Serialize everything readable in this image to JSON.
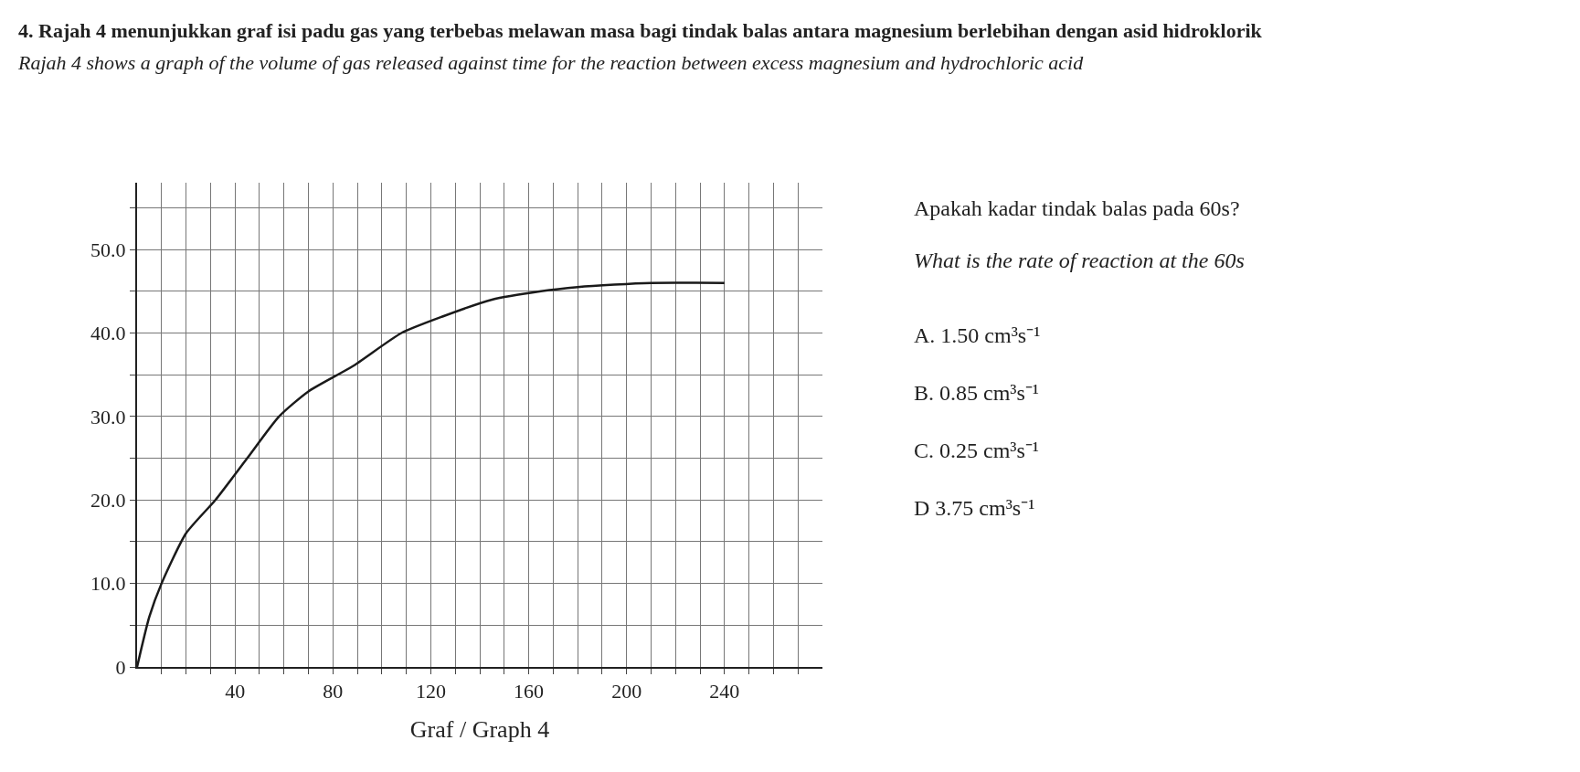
{
  "chart_data": {
    "type": "line",
    "title": "4. Rajah 4 menunjukkan graf isi padu gas yang terbebas melawan masa bagi tindak balas antara magnesium berlebihan dengan asid hidroklorik",
    "subtitle": "Rajah 4 shows a graph of the volume of gas released against time for the reaction between excess magnesium and hydrochloric acid",
    "xlabel": "Graf / Graph 4",
    "x": [
      0,
      5,
      10,
      20,
      32,
      45,
      58,
      70,
      88,
      108,
      125,
      145,
      165,
      180,
      195,
      210,
      240
    ],
    "series": [
      {
        "color": "#1a1a1a",
        "values": [
          0,
          6,
          10,
          16,
          20,
          25,
          30,
          33,
          36,
          40,
          42,
          44,
          45,
          45.5,
          45.8,
          46,
          46
        ]
      }
    ],
    "xlim": [
      0,
      280
    ],
    "ylim": [
      0,
      58
    ],
    "xticks": [
      {
        "value": 10,
        "label": null
      },
      {
        "value": 20,
        "label": null
      },
      {
        "value": 30,
        "label": null
      },
      40,
      {
        "value": 50,
        "label": null
      },
      {
        "value": 60,
        "label": null
      },
      {
        "value": 70,
        "label": null
      },
      80,
      {
        "value": 90,
        "label": null
      },
      {
        "value": 100,
        "label": null
      },
      {
        "value": 110,
        "label": null
      },
      120,
      {
        "value": 130,
        "label": null
      },
      {
        "value": 140,
        "label": null
      },
      {
        "value": 150,
        "label": null
      },
      160,
      {
        "value": 170,
        "label": null
      },
      {
        "value": 180,
        "label": null
      },
      {
        "value": 190,
        "label": null
      },
      200,
      {
        "value": 210,
        "label": null
      },
      {
        "value": 220,
        "label": null
      },
      {
        "value": 230,
        "label": null
      },
      240,
      {
        "value": 250,
        "label": null
      },
      {
        "value": 260,
        "label": null
      },
      {
        "value": 270,
        "label": null
      }
    ],
    "yticks": [
      {
        "value": 0,
        "label": "0"
      },
      {
        "value": 5,
        "label": null
      },
      {
        "value": 10,
        "label": "10.0"
      },
      {
        "value": 15,
        "label": null
      },
      {
        "value": 20,
        "label": "20.0"
      },
      {
        "value": 25,
        "label": null
      },
      {
        "value": 30,
        "label": "30.0"
      },
      {
        "value": 35,
        "label": null
      },
      {
        "value": 40,
        "label": "40.0"
      },
      {
        "value": 45,
        "label": null
      },
      {
        "value": 50,
        "label": "50.0"
      },
      {
        "value": 55,
        "label": null
      }
    ],
    "grid": true,
    "legend": false,
    "marker": "none",
    "line_style": "solid",
    "annotations": [
      "Apakah kadar tindak balas pada 60s?",
      "What is the rate of reaction at the 60s",
      "A. 1.50 cm³s⁻¹",
      "B. 0.85 cm³s⁻¹",
      "C. 0.25 cm³s⁻¹",
      "D 3.75 cm³s⁻¹"
    ]
  }
}
